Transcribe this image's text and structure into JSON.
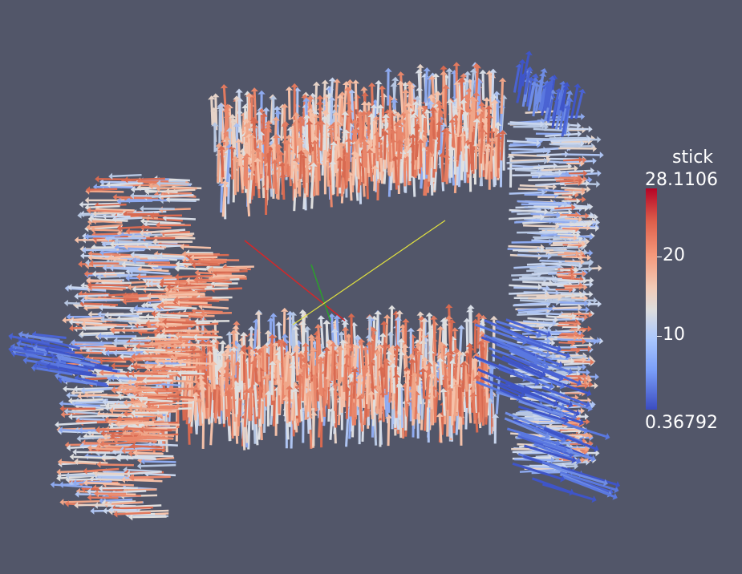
{
  "scalar_bar": {
    "title": "stick",
    "max_label": "28.1106",
    "min_label": "0.36792",
    "tick_labels": [
      "20",
      "10"
    ],
    "colors": {
      "high": "#b40426",
      "mid": "#dddddd",
      "low": "#3b4cc0"
    }
  },
  "scene": {
    "background_color": "#525669",
    "axes_colors": {
      "x": "#d62728",
      "y": "#2ca02c",
      "z": "#e0e040"
    }
  }
}
